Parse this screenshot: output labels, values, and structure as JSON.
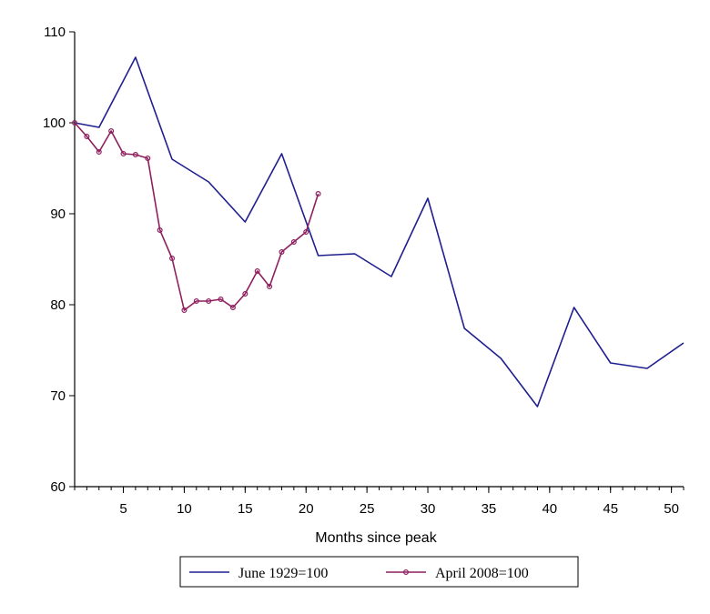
{
  "chart_data": {
    "type": "line",
    "title": "",
    "xlabel": "Months since peak",
    "ylabel": "",
    "xlim": [
      1,
      51
    ],
    "ylim": [
      60,
      110
    ],
    "x_ticks": [
      5,
      10,
      15,
      20,
      25,
      30,
      35,
      40,
      45,
      50
    ],
    "y_ticks": [
      60,
      70,
      80,
      90,
      100,
      110
    ],
    "grid": false,
    "legend_position": "bottom",
    "series": [
      {
        "name": "June 1929=100",
        "color": "#1f1f8f",
        "markers": false,
        "x": [
          1,
          3,
          6,
          9,
          12,
          15,
          18,
          21,
          24,
          27,
          30,
          33,
          36,
          39,
          42,
          45,
          48,
          51
        ],
        "y": [
          100,
          99.5,
          107.2,
          96,
          93.5,
          89.1,
          96.6,
          85.4,
          85.6,
          83.1,
          91.7,
          77.4,
          74.1,
          68.8,
          79.7,
          73.6,
          73,
          75.8
        ]
      },
      {
        "name": "April 2008=100",
        "color": "#8e1f5e",
        "markers": true,
        "x": [
          1,
          2,
          3,
          4,
          5,
          6,
          7,
          8,
          9,
          10,
          11,
          12,
          13,
          14,
          15,
          16,
          17,
          18,
          19,
          20,
          21
        ],
        "y": [
          100,
          98.5,
          96.8,
          99.1,
          96.6,
          96.5,
          96.1,
          88.2,
          85.1,
          79.4,
          80.4,
          80.4,
          80.6,
          79.7,
          81.2,
          83.7,
          82,
          85.8,
          86.9,
          88,
          92.2
        ]
      }
    ]
  }
}
